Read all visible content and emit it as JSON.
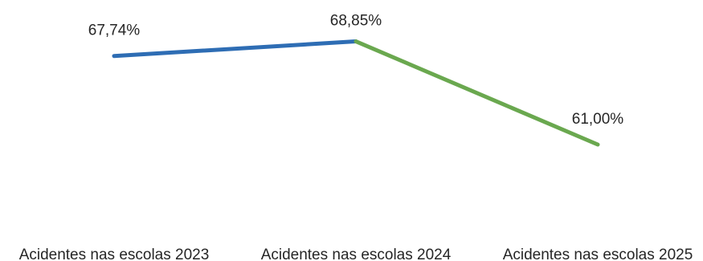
{
  "chart_data": {
    "type": "line",
    "categories": [
      "Acidentes nas escolas 2023",
      "Acidentes nas escolas 2024",
      "Acidentes nas escolas 2025"
    ],
    "values": [
      67.74,
      68.85,
      61.0
    ],
    "data_labels": [
      "67,74%",
      "68,85%",
      "61,00%"
    ],
    "ylim": [
      50,
      72
    ],
    "grid": false,
    "legend": "none",
    "segment_colors": [
      "#2e6db4",
      "#6aa84f"
    ]
  }
}
